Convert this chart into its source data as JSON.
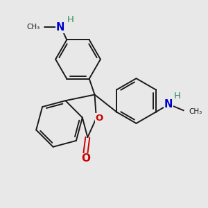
{
  "bg_color": "#e8e8e8",
  "bond_color": "#1a1a1a",
  "nitrogen_color": "#0000cc",
  "oxygen_color": "#cc0000",
  "hydrogen_color": "#2e8b57",
  "figsize": [
    3.0,
    3.0
  ],
  "dpi": 100,
  "xlim": [
    0,
    10
  ],
  "ylim": [
    0,
    10
  ],
  "lw": 1.4,
  "lw_thin": 0.9,
  "font_size_atom": 10,
  "font_size_small": 8.5,
  "inner_circle_ratio": 0.58
}
